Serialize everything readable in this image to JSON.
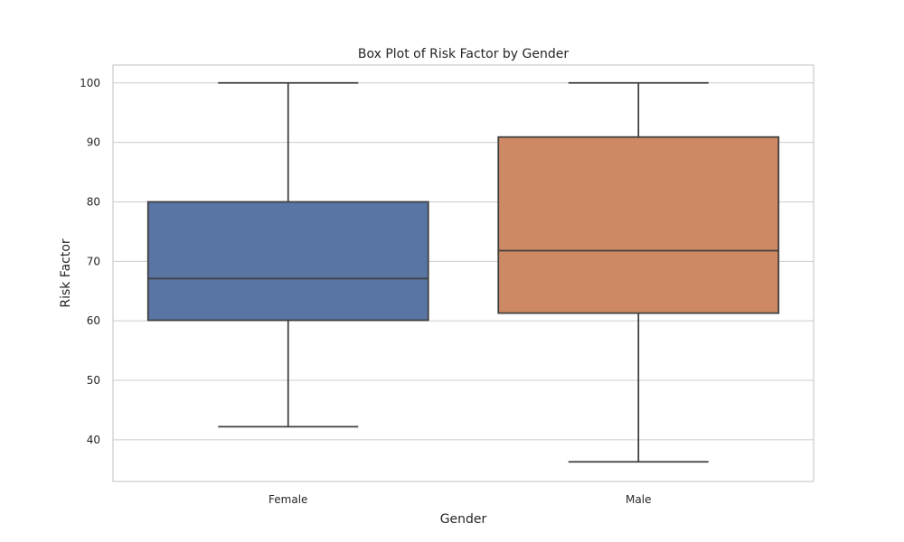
{
  "chart_data": {
    "type": "box",
    "title": "Box Plot of Risk Factor by Gender",
    "xlabel": "Gender",
    "ylabel": "Risk Factor",
    "ylim": [
      33,
      103
    ],
    "yticks": [
      40,
      50,
      60,
      70,
      80,
      90,
      100
    ],
    "grid": true,
    "categories": [
      "Female",
      "Male"
    ],
    "boxes": [
      {
        "category": "Female",
        "min": 42.2,
        "q1": 60.1,
        "median": 67.1,
        "q3": 80.0,
        "max": 100,
        "color": "#5975a4"
      },
      {
        "category": "Male",
        "min": 36.3,
        "q1": 61.3,
        "median": 71.8,
        "q3": 90.9,
        "max": 100,
        "color": "#cc8963"
      }
    ]
  }
}
